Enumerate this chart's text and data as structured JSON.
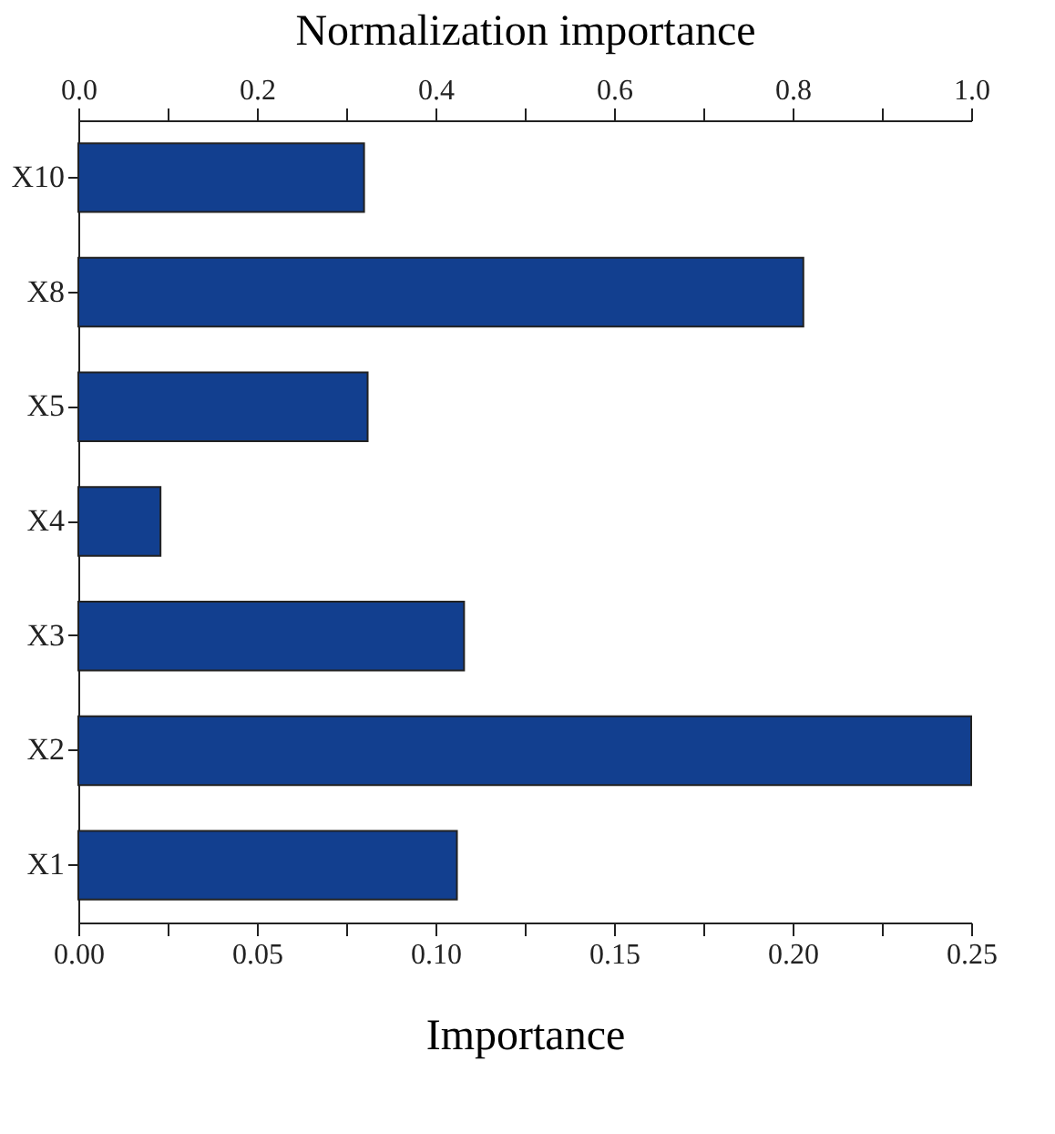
{
  "chart_data": {
    "type": "bar",
    "orientation": "horizontal",
    "xlabel": "Importance",
    "x2label": "Normalization importance",
    "categories": [
      "X10",
      "X8",
      "X5",
      "X4",
      "X3",
      "X2",
      "X1"
    ],
    "values": [
      0.08,
      0.203,
      0.081,
      0.023,
      0.108,
      0.25,
      0.106
    ],
    "color": "#123f8f",
    "xlim": [
      0,
      0.25
    ],
    "xticks": [
      {
        "value": 0,
        "label": "0.00"
      },
      {
        "value": 0.025,
        "label": null
      },
      {
        "value": 0.05,
        "label": "0.05"
      },
      {
        "value": 0.075,
        "label": null
      },
      {
        "value": 0.1,
        "label": "0.10"
      },
      {
        "value": 0.125,
        "label": null
      },
      {
        "value": 0.15,
        "label": "0.15"
      },
      {
        "value": 0.175,
        "label": null
      },
      {
        "value": 0.2,
        "label": "0.20"
      },
      {
        "value": 0.225,
        "label": null
      },
      {
        "value": 0.25,
        "label": "0.25"
      }
    ],
    "x2lim": [
      0,
      1
    ],
    "x2ticks": [
      {
        "value": 0,
        "label": "0.0"
      },
      {
        "value": 0.1,
        "label": null
      },
      {
        "value": 0.2,
        "label": "0.2"
      },
      {
        "value": 0.3,
        "label": null
      },
      {
        "value": 0.4,
        "label": "0.4"
      },
      {
        "value": 0.5,
        "label": null
      },
      {
        "value": 0.6,
        "label": "0.6"
      },
      {
        "value": 0.7,
        "label": null
      },
      {
        "value": 0.8,
        "label": "0.8"
      },
      {
        "value": 0.9,
        "label": null
      },
      {
        "value": 1,
        "label": "1.0"
      }
    ]
  }
}
